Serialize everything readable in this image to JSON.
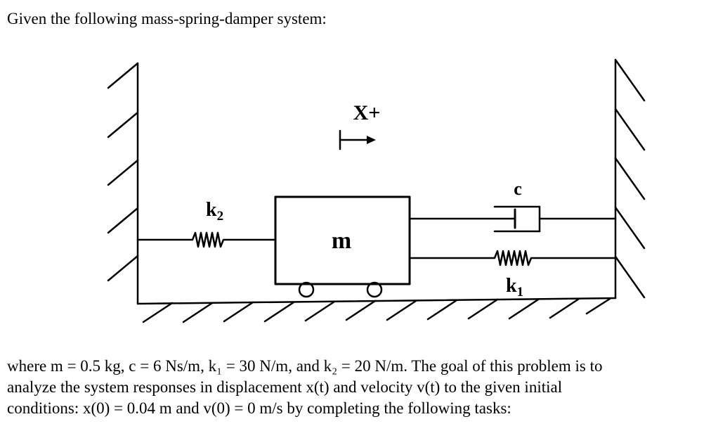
{
  "intro": "Given the following mass-spring-damper system:",
  "diagram": {
    "direction_label": "X+",
    "mass_label": "m",
    "damper_label": "c",
    "spring_left_label": "k",
    "spring_left_sub": "2",
    "spring_right_label": "k",
    "spring_right_sub": "1"
  },
  "paragraph": {
    "line1": "where m = 0.5 kg, c = 6 Ns/m, k₁ = 30 N/m, and k₂ = 20 N/m. The goal of this problem is to",
    "line2": "analyze the system responses in displacement x(t) and velocity v(t) to the given initial",
    "line3": "conditions: x(0) = 0.04 m and v(0) = 0 m/s by completing the following tasks:"
  }
}
